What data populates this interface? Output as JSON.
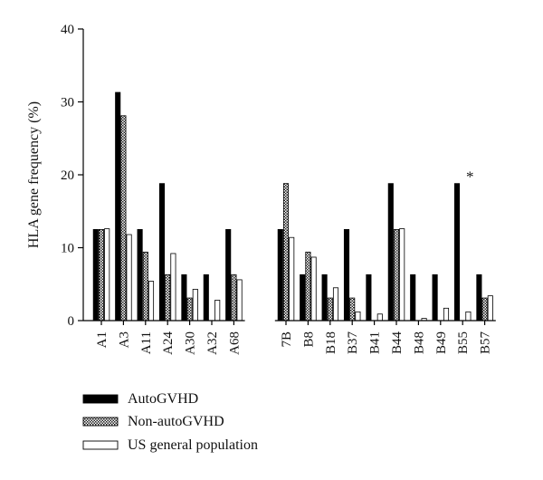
{
  "chart_data": {
    "type": "bar",
    "title": "",
    "xlabel": "",
    "ylabel": "HLA gene frequency (%)",
    "ylim": [
      0,
      40
    ],
    "yticks": [
      0,
      10,
      20,
      30,
      40
    ],
    "groups": [
      [
        "A1",
        "A3",
        "A11",
        "A24",
        "A30",
        "A32",
        "A68"
      ],
      [
        "7B",
        "B8",
        "B18",
        "B37",
        "B41",
        "B44",
        "B48",
        "B49",
        "B55",
        "B57"
      ]
    ],
    "categories": [
      "A1",
      "A3",
      "A11",
      "A24",
      "A30",
      "A32",
      "A68",
      "7B",
      "B8",
      "B18",
      "B37",
      "B41",
      "B44",
      "B48",
      "B49",
      "B55",
      "B57"
    ],
    "series": [
      {
        "name": "AutoGVHD",
        "pattern": "solid",
        "values": [
          12.5,
          31.3,
          12.5,
          18.8,
          6.3,
          6.3,
          12.5,
          12.5,
          6.3,
          6.3,
          12.5,
          6.3,
          18.8,
          6.3,
          6.3,
          18.8,
          6.3
        ]
      },
      {
        "name": "Non-autoGVHD",
        "pattern": "crosshatch",
        "values": [
          12.5,
          28.1,
          9.4,
          6.3,
          3.1,
          0,
          6.3,
          18.8,
          9.4,
          3.1,
          3.1,
          0,
          12.5,
          0,
          0,
          0,
          3.1
        ]
      },
      {
        "name": "US general population",
        "pattern": "open",
        "values": [
          12.6,
          11.8,
          5.4,
          9.2,
          4.3,
          2.8,
          5.6,
          11.4,
          8.7,
          4.5,
          1.2,
          0.9,
          12.6,
          0.3,
          1.7,
          1.2,
          3.4
        ]
      }
    ],
    "annotations": [
      {
        "category": "B55",
        "text": "*"
      }
    ],
    "legend_position": "bottom-left",
    "grid": false
  }
}
